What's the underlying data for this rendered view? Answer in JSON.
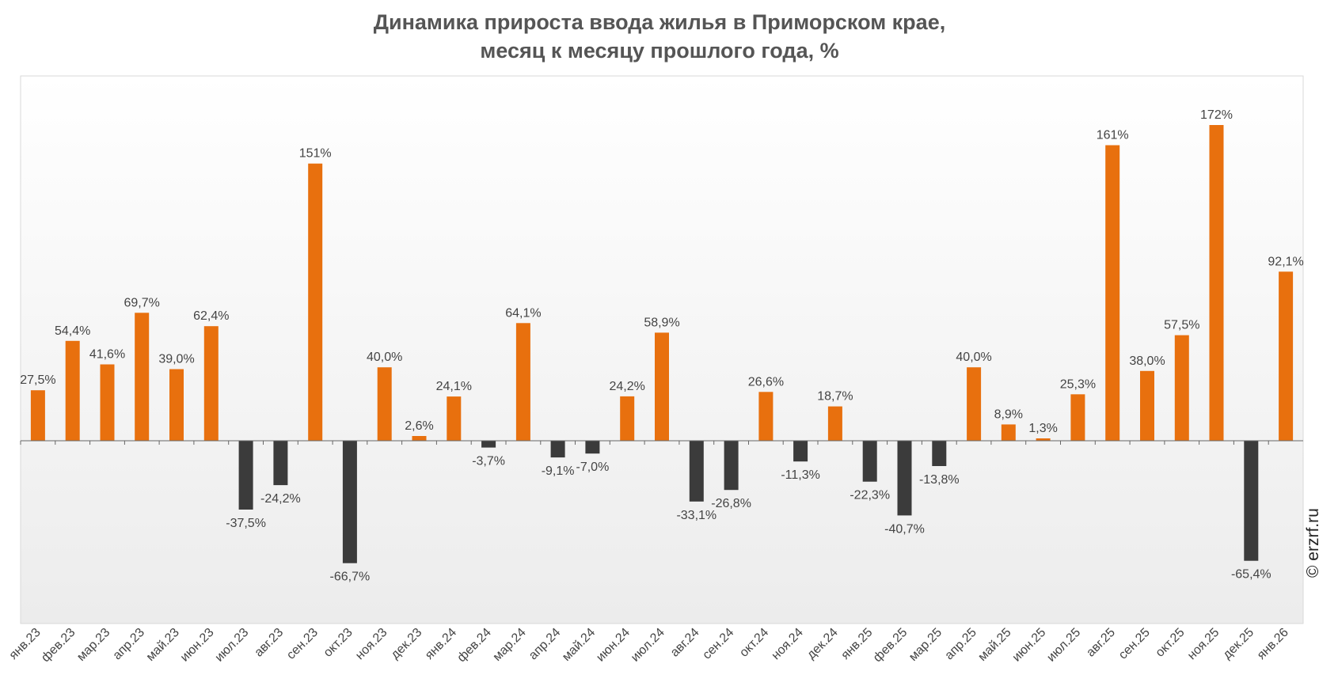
{
  "title_line1": "Динамика прироста ввода жилья в Приморском крае,",
  "title_line2": "месяц к месяцу прошлого года, %",
  "copyright": "© erzrf.ru",
  "chart_data": {
    "type": "bar",
    "title": "Динамика прироста ввода жилья в Приморском крае, месяц к месяцу прошлого года, %",
    "categories": [
      "янв.23",
      "фев.23",
      "мар.23",
      "апр.23",
      "май.23",
      "июн.23",
      "июл.23",
      "авг.23",
      "сен.23",
      "окт.23",
      "ноя.23",
      "дек.23",
      "янв.24",
      "фев.24",
      "мар.24",
      "апр.24",
      "май.24",
      "июн.24",
      "июл.24",
      "авг.24",
      "сен.24",
      "окт.24",
      "ноя.24",
      "дек.24",
      "янв.25",
      "фев.25",
      "мар.25",
      "апр.25",
      "май.25",
      "июн.25",
      "июл.25",
      "авг.25",
      "сен.25",
      "окт.25",
      "ноя.25",
      "дек.25",
      "янв.26"
    ],
    "values": [
      27.5,
      54.4,
      41.6,
      69.7,
      39.0,
      62.4,
      -37.5,
      -24.2,
      151,
      -66.7,
      40.0,
      2.6,
      24.1,
      -3.7,
      64.1,
      -9.1,
      -7.0,
      24.2,
      58.9,
      -33.1,
      -26.8,
      26.6,
      -11.3,
      18.7,
      -22.3,
      -40.7,
      -13.8,
      40.0,
      8.9,
      1.3,
      25.3,
      161,
      38.0,
      57.5,
      172,
      -65.4,
      92.1
    ],
    "labels": [
      "27,5%",
      "54,4%",
      "41,6%",
      "69,7%",
      "39,0%",
      "62,4%",
      "-37,5%",
      "-24,2%",
      "151%",
      "-66,7%",
      "40,0%",
      "2,6%",
      "24,1%",
      "-3,7%",
      "64,1%",
      "-9,1%",
      "-7,0%",
      "24,2%",
      "58,9%",
      "-33,1%",
      "-26,8%",
      "26,6%",
      "-11,3%",
      "18,7%",
      "-22,3%",
      "-40,7%",
      "-13,8%",
      "40,0%",
      "8,9%",
      "1,3%",
      "25,3%",
      "161%",
      "38,0%",
      "57,5%",
      "172%",
      "-65,4%",
      "92,1%"
    ],
    "ylim": [
      -100,
      200
    ],
    "xlabel": "",
    "ylabel": "",
    "grid": false,
    "colors": {
      "positive": "#E8700E",
      "negative": "#3B3B3B",
      "label": "#444444",
      "axis": "#666666",
      "frame": "#D9D9D9"
    }
  }
}
